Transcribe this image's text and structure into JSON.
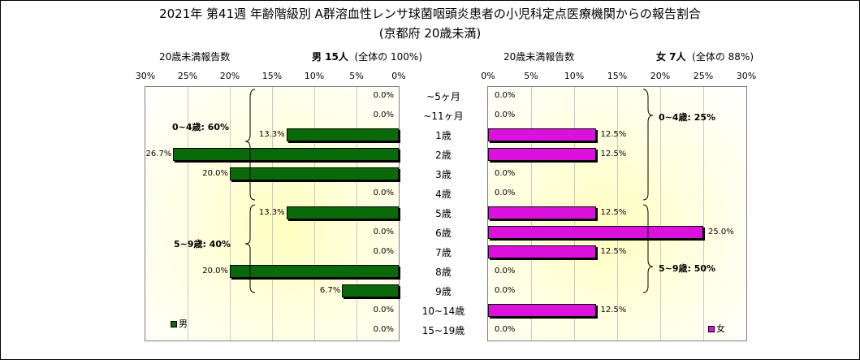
{
  "title": "2021年 第41週 年齢階級別 A群溶血性レンサ球菌咽頭炎患者の小児科定点医療機関からの報告割合",
  "subtitle": "(京都府 20歳未満)",
  "male_header": {
    "count_label": "20歳未満報告数",
    "summary_bold": "男  15人",
    "summary_rest": "(全体の  100%)"
  },
  "female_header": {
    "count_label": "20歳未満報告数",
    "summary_bold": "女  7人",
    "summary_rest": "(全体の  88%)"
  },
  "legend": {
    "male": "男",
    "female": "女"
  },
  "colors": {
    "male": "#0a6a0a",
    "female": "#dd11dd"
  },
  "groups": {
    "male_0_4": "0~4歳: 60%",
    "male_5_9": "5~9歳: 40%",
    "female_0_4": "0~4歳: 25%",
    "female_5_9": "5~9歳: 50%"
  },
  "chart_data": {
    "type": "bar",
    "categories": [
      "~5ヶ月",
      "~11ヶ月",
      "1歳",
      "2歳",
      "3歳",
      "4歳",
      "5歳",
      "6歳",
      "7歳",
      "8歳",
      "9歳",
      "10~14歳",
      "15~19歳"
    ],
    "series": [
      {
        "name": "男",
        "values": [
          0.0,
          0.0,
          13.3,
          26.7,
          20.0,
          0.0,
          13.3,
          0.0,
          0.0,
          20.0,
          6.7,
          0.0,
          0.0
        ],
        "labels": [
          "0.0%",
          "0.0%",
          "13.3%",
          "26.7%",
          "20.0%",
          "0.0%",
          "13.3%",
          "0.0%",
          "0.0%",
          "20.0%",
          "6.7%",
          "0.0%",
          "0.0%"
        ]
      },
      {
        "name": "女",
        "values": [
          0.0,
          0.0,
          12.5,
          12.5,
          0.0,
          0.0,
          12.5,
          25.0,
          12.5,
          0.0,
          0.0,
          12.5,
          0.0
        ],
        "labels": [
          "0.0%",
          "0.0%",
          "12.5%",
          "12.5%",
          "0.0%",
          "0.0%",
          "12.5%",
          "25.0%",
          "12.5%",
          "0.0%",
          "0.0%",
          "12.5%",
          "0.0%"
        ]
      }
    ],
    "xlim": [
      0,
      30
    ],
    "ticks": [
      "0%",
      "5%",
      "10%",
      "15%",
      "20%",
      "25%",
      "30%"
    ],
    "legend_position": "bottom-left (male), bottom-right (female)"
  }
}
